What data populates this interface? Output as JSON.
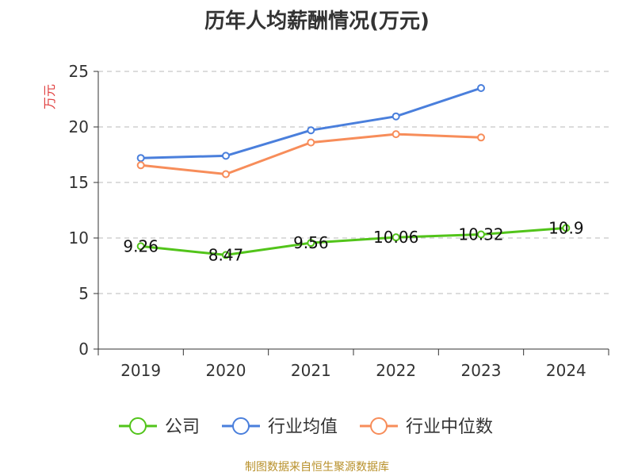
{
  "chart_data": {
    "type": "line",
    "title": "历年人均薪酬情况(万元)",
    "ylabel": "万元",
    "xlabel": "",
    "categories": [
      "2019",
      "2020",
      "2021",
      "2022",
      "2023",
      "2024"
    ],
    "ylim": [
      0,
      25
    ],
    "yticks": [
      0,
      5,
      10,
      15,
      20,
      25
    ],
    "grid": true,
    "grid_style": "dashed",
    "legend_position": "bottom",
    "series": [
      {
        "name": "公司",
        "color": "#52c41a",
        "values": [
          9.26,
          8.47,
          9.56,
          10.06,
          10.32,
          10.9
        ],
        "data_labels": [
          "9.26",
          "8.47",
          "9.56",
          "10.06",
          "10.32",
          "10.9"
        ]
      },
      {
        "name": "行业均值",
        "color": "#4a7fdc",
        "values": [
          17.2,
          17.4,
          19.7,
          20.95,
          23.5,
          null
        ]
      },
      {
        "name": "行业中位数",
        "color": "#f78d5a",
        "values": [
          16.55,
          15.75,
          18.6,
          19.35,
          19.05,
          null
        ]
      }
    ]
  },
  "footer": {
    "source": "制图数据来自恒生聚源数据库"
  }
}
